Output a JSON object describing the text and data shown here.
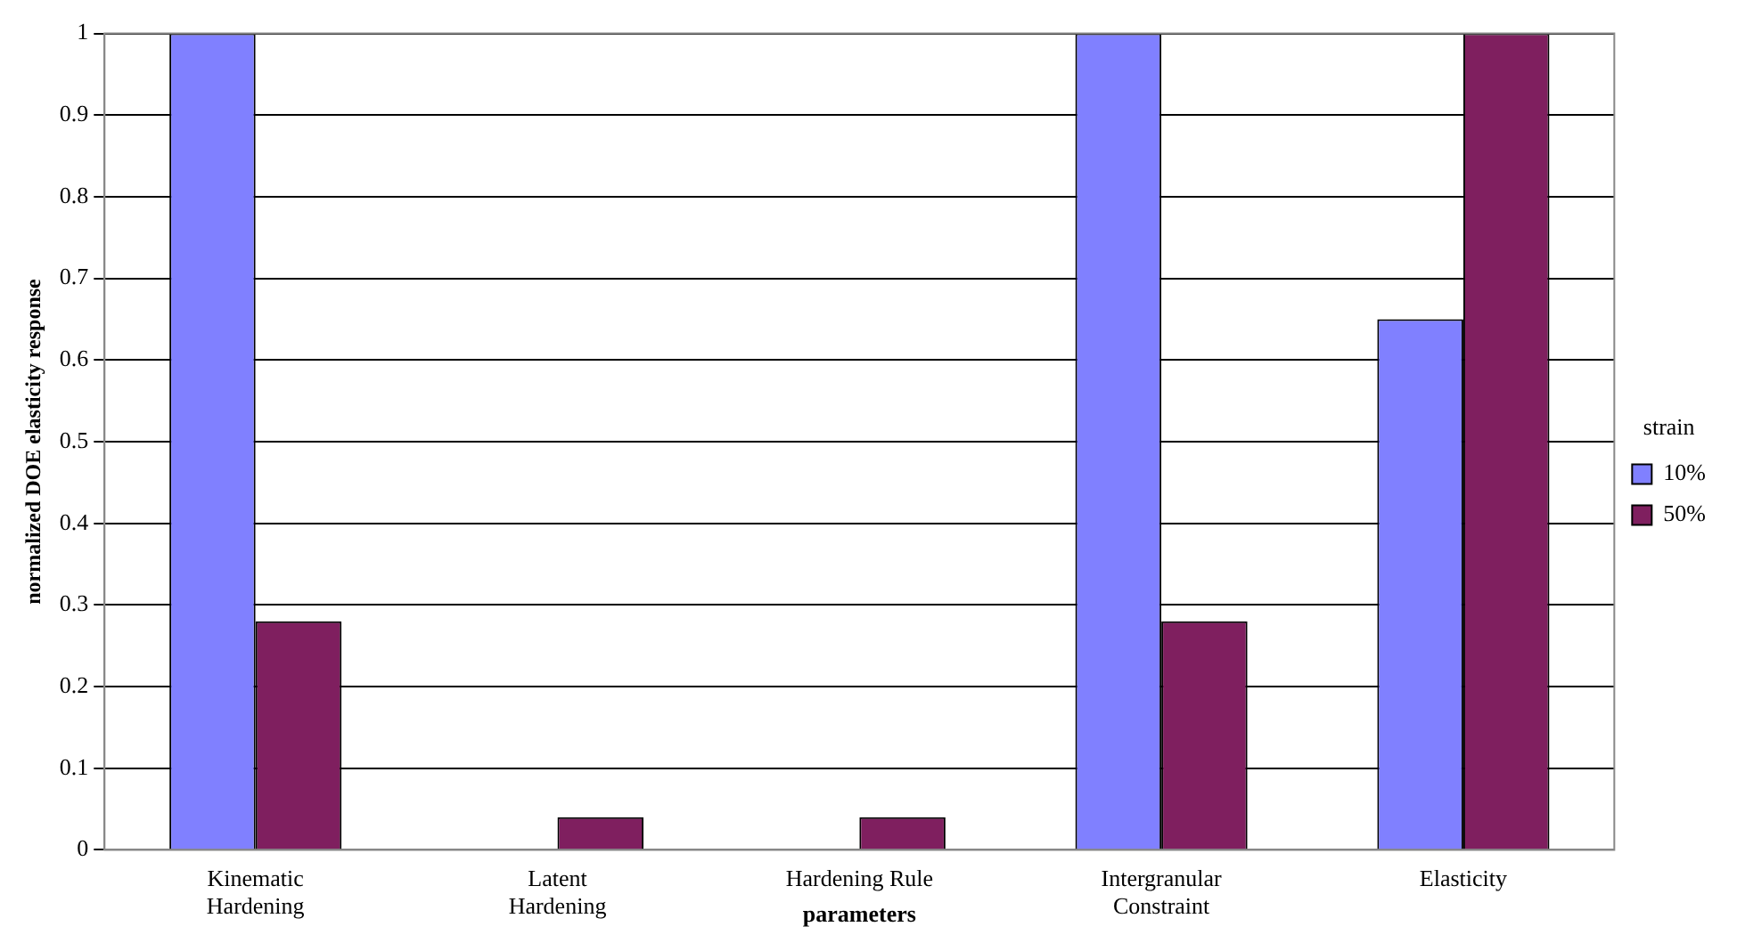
{
  "chart_data": {
    "type": "bar",
    "xlabel": "parameters",
    "ylabel": "normalized DOE elasticity response",
    "legend_title": "strain",
    "categories": [
      "Kinematic Hardening",
      "Latent Hardening",
      "Hardening Rule",
      "Intergranular Constraint",
      "Elasticity"
    ],
    "series": [
      {
        "name": "10%",
        "color": "#8080ff",
        "values": [
          1,
          0,
          0,
          1,
          0.65
        ]
      },
      {
        "name": "50%",
        "color": "#7f1f5f",
        "values": [
          0.28,
          0.04,
          0.04,
          0.28,
          1
        ]
      }
    ],
    "ylim": [
      0,
      1
    ],
    "yticks": [
      0,
      0.1,
      0.2,
      0.3,
      0.4,
      0.5,
      0.6,
      0.7,
      0.8,
      0.9,
      1
    ],
    "grid": "y",
    "legend": "right"
  }
}
